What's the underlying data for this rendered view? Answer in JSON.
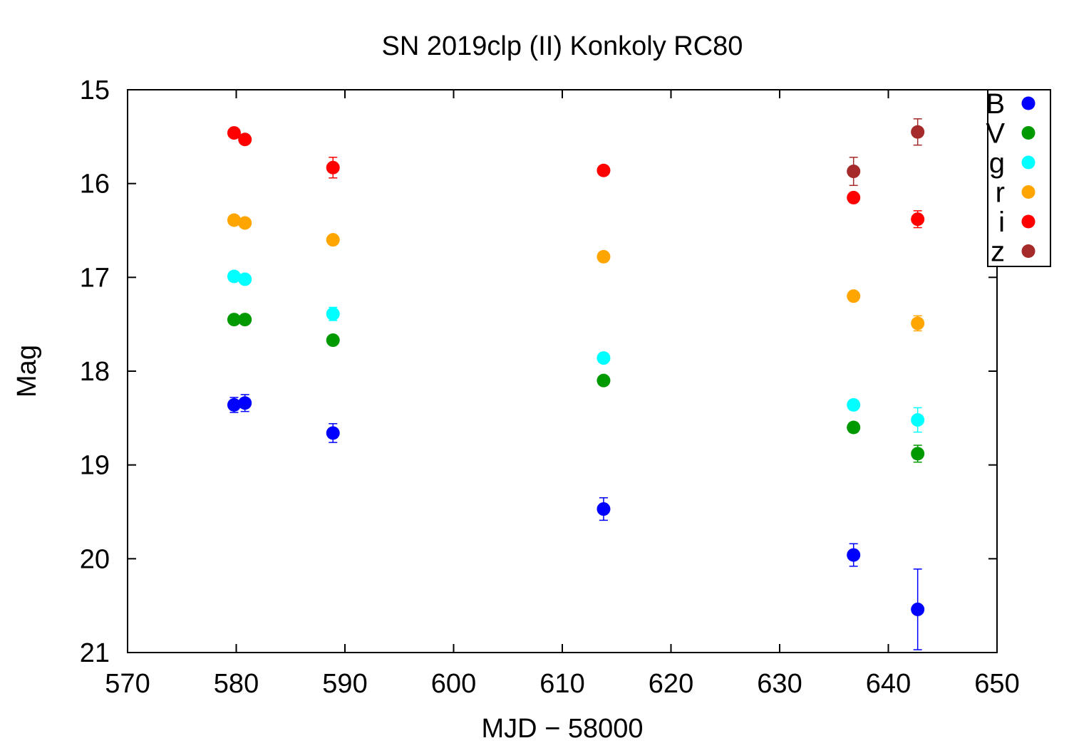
{
  "chart_data": {
    "type": "scatter",
    "title": "SN 2019clp (II) Konkoly RC80",
    "xlabel": "MJD − 58000",
    "ylabel": "Mag",
    "xlim": [
      570,
      650
    ],
    "ylim": [
      21,
      15
    ],
    "y_inverted": true,
    "grid": false,
    "legend_position": "top-right",
    "xticks": [
      "570",
      "580",
      "590",
      "600",
      "610",
      "620",
      "630",
      "640",
      "650"
    ],
    "yticks": [
      "15",
      "16",
      "17",
      "18",
      "19",
      "20",
      "21"
    ],
    "series": [
      {
        "name": "B",
        "color": "#0000ff",
        "points": [
          {
            "x": 579.8,
            "y": 18.36,
            "err": 0.08
          },
          {
            "x": 580.8,
            "y": 18.34,
            "err": 0.09
          },
          {
            "x": 588.9,
            "y": 18.66,
            "err": 0.1
          },
          {
            "x": 613.8,
            "y": 19.47,
            "err": 0.12
          },
          {
            "x": 636.8,
            "y": 19.96,
            "err": 0.12
          },
          {
            "x": 642.7,
            "y": 20.54,
            "err": 0.43
          }
        ]
      },
      {
        "name": "V",
        "color": "#009900",
        "points": [
          {
            "x": 579.8,
            "y": 17.45,
            "err": 0.03
          },
          {
            "x": 580.8,
            "y": 17.45,
            "err": 0.03
          },
          {
            "x": 588.9,
            "y": 17.67,
            "err": 0.05
          },
          {
            "x": 613.8,
            "y": 18.1,
            "err": 0.03
          },
          {
            "x": 636.8,
            "y": 18.6,
            "err": 0.03
          },
          {
            "x": 642.7,
            "y": 18.88,
            "err": 0.09
          }
        ]
      },
      {
        "name": "g",
        "color": "#00ffff",
        "points": [
          {
            "x": 579.8,
            "y": 16.99,
            "err": 0.03
          },
          {
            "x": 580.8,
            "y": 17.02,
            "err": 0.03
          },
          {
            "x": 588.9,
            "y": 17.39,
            "err": 0.07
          },
          {
            "x": 613.8,
            "y": 17.86,
            "err": 0.03
          },
          {
            "x": 636.8,
            "y": 18.36,
            "err": 0.03
          },
          {
            "x": 642.7,
            "y": 18.52,
            "err": 0.13
          }
        ]
      },
      {
        "name": "r",
        "color": "#ffa500",
        "points": [
          {
            "x": 579.8,
            "y": 16.39,
            "err": 0.02
          },
          {
            "x": 580.8,
            "y": 16.42,
            "err": 0.02
          },
          {
            "x": 588.9,
            "y": 16.6,
            "err": 0.03
          },
          {
            "x": 613.8,
            "y": 16.78,
            "err": 0.02
          },
          {
            "x": 636.8,
            "y": 17.2,
            "err": 0.03
          },
          {
            "x": 642.7,
            "y": 17.49,
            "err": 0.08
          }
        ]
      },
      {
        "name": "i",
        "color": "#ff0000",
        "points": [
          {
            "x": 579.8,
            "y": 15.46,
            "err": 0.02
          },
          {
            "x": 580.8,
            "y": 15.53,
            "err": 0.02
          },
          {
            "x": 588.9,
            "y": 15.83,
            "err": 0.11
          },
          {
            "x": 613.8,
            "y": 15.86,
            "err": 0.02
          },
          {
            "x": 636.8,
            "y": 16.15,
            "err": 0.03
          },
          {
            "x": 642.7,
            "y": 16.38,
            "err": 0.09
          }
        ]
      },
      {
        "name": "z",
        "color": "#a52a2a",
        "points": [
          {
            "x": 636.8,
            "y": 15.87,
            "err": 0.15
          },
          {
            "x": 642.7,
            "y": 15.45,
            "err": 0.14
          }
        ]
      }
    ]
  }
}
